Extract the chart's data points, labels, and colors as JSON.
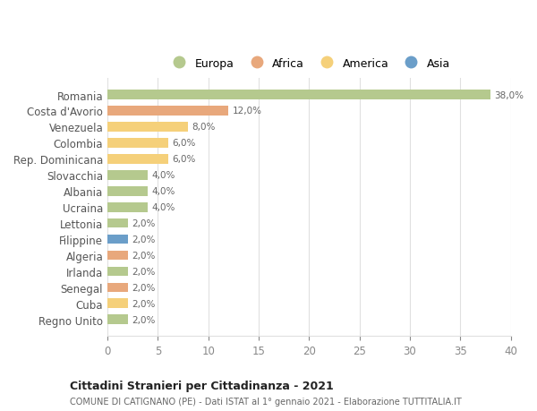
{
  "countries": [
    "Romania",
    "Costa d'Avorio",
    "Venezuela",
    "Colombia",
    "Rep. Dominicana",
    "Slovacchia",
    "Albania",
    "Ucraina",
    "Lettonia",
    "Filippine",
    "Algeria",
    "Irlanda",
    "Senegal",
    "Cuba",
    "Regno Unito"
  ],
  "values": [
    38.0,
    12.0,
    8.0,
    6.0,
    6.0,
    4.0,
    4.0,
    4.0,
    2.0,
    2.0,
    2.0,
    2.0,
    2.0,
    2.0,
    2.0
  ],
  "continents": [
    "Europa",
    "Africa",
    "America",
    "America",
    "America",
    "Europa",
    "Europa",
    "Europa",
    "Europa",
    "Asia",
    "Africa",
    "Europa",
    "Africa",
    "America",
    "Europa"
  ],
  "continent_colors": {
    "Europa": "#b5c98e",
    "Africa": "#e8a87c",
    "America": "#f5d07a",
    "Asia": "#6b9ec9"
  },
  "legend_order": [
    "Europa",
    "Africa",
    "America",
    "Asia"
  ],
  "title": "Cittadini Stranieri per Cittadinanza - 2021",
  "subtitle": "COMUNE DI CATIGNANO (PE) - Dati ISTAT al 1° gennaio 2021 - Elaborazione TUTTITALIA.IT",
  "xlim": [
    0,
    40
  ],
  "xticks": [
    0,
    5,
    10,
    15,
    20,
    25,
    30,
    35,
    40
  ],
  "background_color": "#ffffff",
  "grid_color": "#e0e0e0",
  "bar_height": 0.6
}
